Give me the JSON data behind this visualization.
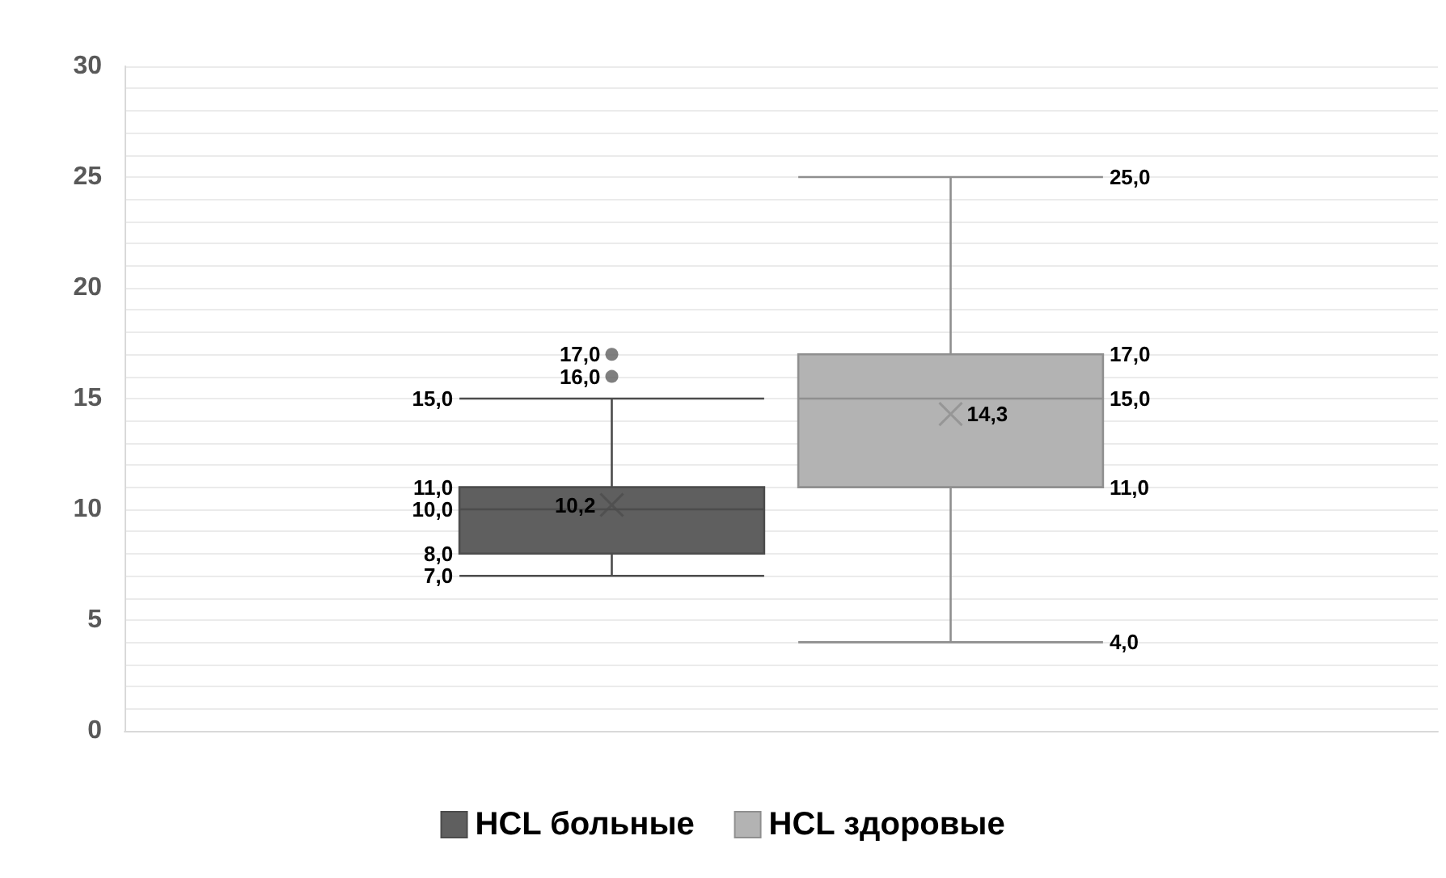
{
  "chart_data": {
    "type": "box",
    "categories": [
      null
    ],
    "series": [
      {
        "name": "HCL больные",
        "color": "#5f5f5f",
        "boxes": [
          {
            "low": 7,
            "q1": 8,
            "median": 10,
            "q3": 11,
            "high": 15,
            "mean": 10.2,
            "outliers": [
              16,
              17
            ]
          }
        ]
      },
      {
        "name": "HCL здоровые",
        "color": "#b3b3b3",
        "boxes": [
          {
            "low": 4,
            "q1": 11,
            "median": 15,
            "q3": 17,
            "high": 25,
            "mean": 14.3
          }
        ]
      }
    ],
    "ylim": [
      0,
      30
    ],
    "yticks": [
      0,
      {
        "value": 1,
        "label": null
      },
      {
        "value": 2,
        "label": null
      },
      {
        "value": 3,
        "label": null
      },
      {
        "value": 4,
        "label": null
      },
      5,
      {
        "value": 6,
        "label": null
      },
      {
        "value": 7,
        "label": null
      },
      {
        "value": 8,
        "label": null
      },
      {
        "value": 9,
        "label": null
      },
      10,
      {
        "value": 11,
        "label": null
      },
      {
        "value": 12,
        "label": null
      },
      {
        "value": 13,
        "label": null
      },
      {
        "value": 14,
        "label": null
      },
      15,
      {
        "value": 16,
        "label": null
      },
      {
        "value": 17,
        "label": null
      },
      {
        "value": 18,
        "label": null
      },
      {
        "value": 19,
        "label": null
      },
      20,
      {
        "value": 21,
        "label": null
      },
      {
        "value": 22,
        "label": null
      },
      {
        "value": 23,
        "label": null
      },
      {
        "value": 24,
        "label": null
      },
      25,
      {
        "value": 26,
        "label": null
      },
      {
        "value": 27,
        "label": null
      },
      {
        "value": 28,
        "label": null
      },
      {
        "value": 29,
        "label": null
      },
      30
    ],
    "annotations": [
      "17,0",
      "16,0",
      "15,0",
      "11,0",
      "10,2",
      "10,0",
      "8,0",
      "7,0",
      "25,0",
      "17,0",
      "15,0",
      "14,3",
      "11,0",
      "4,0"
    ],
    "grid": "y",
    "legend": "bottom",
    "tick_labels": "y"
  }
}
